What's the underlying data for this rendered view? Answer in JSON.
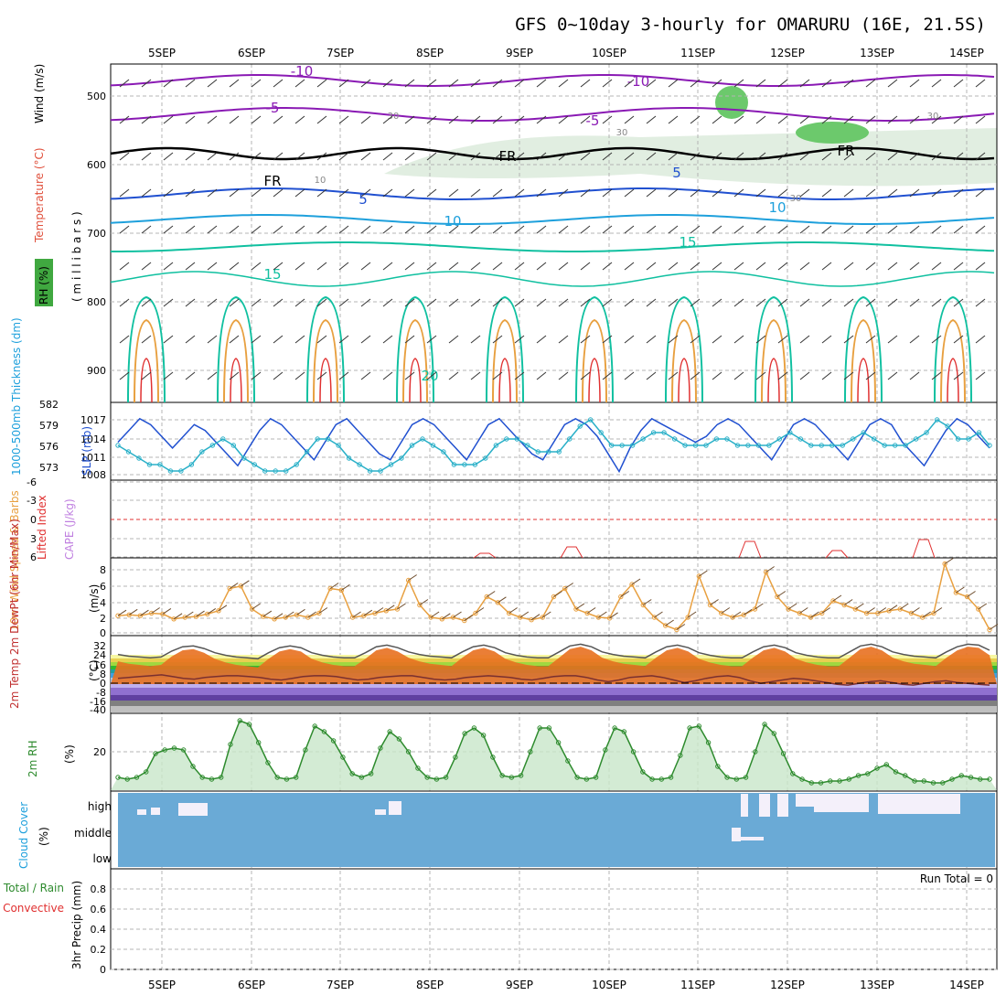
{
  "title": "GFS 0~10day 3-hourly for OMARURU (16E, 21.5S)",
  "dates": [
    "5SEP",
    "6SEP",
    "7SEP",
    "8SEP",
    "9SEP",
    "10SEP",
    "11SEP",
    "12SEP",
    "13SEP",
    "14SEP"
  ],
  "labels": {
    "wind_ms": "Wind (m/s)",
    "temperature": "Temperature (°C)",
    "rh": "RH (%)",
    "millibars": "( m i l l i b a r s )",
    "thickness": "1000-500mb Thickness (dm)",
    "slp": "SLP (mb)",
    "lifted_index": "Lifted Index",
    "cape": "CAPE (J/kg)",
    "wind10m": "10m Wind Speed & Barbs",
    "ms": "(m/s)",
    "temp2m": "2m Temp 2m DewPt (6hr Min/Max)",
    "degc": "(°C)",
    "rh2m": "2m RH",
    "pct": "(%)",
    "cloud": "Cloud Cover",
    "cloud_pct": "(%)",
    "precip_left": "Total / Rain",
    "precip_conv": "Convective",
    "precip": "3hr Precip (mm)",
    "run_total": "Run Total = 0"
  },
  "colors": {
    "purple": "#8a1ab4",
    "blue_dark": "#2050d0",
    "cyan": "#1ea0dc",
    "teal": "#10c0a0",
    "orange": "#e8a040",
    "red": "#e03030",
    "cloud_blue": "#6aaad6",
    "rh_green": "#4caf50"
  },
  "chart_data": [
    {
      "type": "line",
      "panel": "upper-air",
      "y_ticks": [
        "500",
        "600",
        "700",
        "800",
        "900"
      ],
      "contour_labels": [
        "-10",
        "-10",
        "-5",
        "-5",
        "FR",
        "FR",
        "FR",
        "5",
        "5",
        "10",
        "10",
        "15",
        "15",
        "20",
        "30",
        "30",
        "30",
        "30",
        "10"
      ],
      "ylim": [
        950,
        450
      ]
    },
    {
      "type": "line",
      "panel": "thickness-slp",
      "thickness_ticks": [
        "582",
        "579",
        "576",
        "573"
      ],
      "slp_ticks": [
        "1017",
        "1014",
        "1011",
        "1008"
      ],
      "series": [
        {
          "name": "SLP",
          "values": [
            1013,
            1015,
            1017,
            1016,
            1014,
            1012,
            1014,
            1016,
            1015,
            1013,
            1011,
            1009,
            1012,
            1015,
            1017,
            1016,
            1014,
            1012,
            1010,
            1013,
            1016,
            1017,
            1015,
            1013,
            1011,
            1010,
            1013,
            1016,
            1017,
            1016,
            1014,
            1012,
            1010,
            1013,
            1016,
            1017,
            1015,
            1013,
            1011,
            1010,
            1013,
            1016,
            1017,
            1016,
            1014,
            1011,
            1008,
            1012,
            1015,
            1017,
            1016,
            1015,
            1014,
            1013,
            1014,
            1016,
            1017,
            1016,
            1014,
            1012,
            1010,
            1013,
            1016,
            1017,
            1016,
            1014,
            1012,
            1010,
            1013,
            1016,
            1017,
            1016,
            1013,
            1011,
            1009,
            1012,
            1015,
            1017,
            1016,
            1014,
            1012
          ]
        },
        {
          "name": "Thickness",
          "values": [
            577,
            576,
            575,
            574,
            574,
            573,
            573,
            574,
            576,
            577,
            578,
            577,
            575,
            574,
            573,
            573,
            573,
            574,
            576,
            578,
            578,
            577,
            575,
            574,
            573,
            573,
            574,
            575,
            577,
            578,
            577,
            576,
            574,
            574,
            574,
            575,
            577,
            578,
            578,
            577,
            576,
            576,
            576,
            578,
            580,
            581,
            579,
            577,
            577,
            577,
            578,
            579,
            579,
            578,
            577,
            577,
            577,
            578,
            578,
            577,
            577,
            577,
            577,
            578,
            579,
            578,
            577,
            577,
            577,
            577,
            578,
            579,
            578,
            577,
            577,
            577,
            578,
            579,
            581,
            580,
            578,
            578,
            579,
            577
          ]
        }
      ]
    },
    {
      "type": "line",
      "panel": "lifted-cape",
      "y_ticks": [
        "-6",
        "-3",
        "0",
        "3",
        "6"
      ],
      "ylim": [
        6,
        -6
      ]
    },
    {
      "type": "line",
      "panel": "wind10m",
      "y_ticks": [
        "8",
        "6",
        "4",
        "2",
        "0"
      ],
      "ylim": [
        0,
        9
      ],
      "values": [
        2.2,
        2.3,
        2.2,
        2.5,
        2.4,
        1.8,
        2.0,
        2.1,
        2.4,
        2.8,
        5.5,
        5.8,
        3.0,
        2.1,
        1.8,
        2.0,
        2.3,
        2.0,
        2.5,
        5.5,
        5.3,
        2.0,
        2.2,
        2.5,
        2.8,
        3.0,
        6.5,
        3.5,
        2.0,
        1.8,
        2.0,
        1.6,
        2.5,
        4.5,
        3.8,
        2.5,
        2.0,
        1.7,
        2.0,
        4.5,
        5.5,
        3.0,
        2.5,
        2.0,
        1.9,
        4.5,
        6.0,
        3.5,
        2.0,
        1.0,
        0.5,
        2.0,
        7.0,
        3.5,
        2.5,
        2.0,
        2.3,
        3.0,
        7.5,
        4.5,
        3.0,
        2.5,
        2.0,
        2.5,
        4.0,
        3.5,
        3.0,
        2.5,
        2.5,
        2.8,
        3.0,
        2.5,
        2.0,
        2.5,
        8.5,
        5.0,
        4.5,
        3.0,
        0.5
      ]
    },
    {
      "type": "area",
      "panel": "temp2m",
      "y_ticks": [
        "32",
        "24",
        "16",
        "8",
        "0",
        "-8",
        "-16",
        "-40"
      ],
      "series": [
        {
          "name": "2m Temp",
          "values": [
            18,
            16,
            15,
            14,
            15,
            22,
            27,
            28,
            25,
            20,
            17,
            15,
            14,
            13,
            20,
            26,
            28,
            26,
            20,
            17,
            15,
            14,
            14,
            20,
            27,
            29,
            26,
            21,
            18,
            16,
            15,
            14,
            21,
            27,
            29,
            26,
            20,
            17,
            15,
            14,
            14,
            21,
            28,
            30,
            27,
            21,
            18,
            16,
            15,
            14,
            21,
            27,
            29,
            26,
            20,
            17,
            15,
            14,
            14,
            21,
            27,
            29,
            26,
            20,
            17,
            15,
            14,
            14,
            21,
            28,
            30,
            27,
            21,
            18,
            16,
            15,
            14,
            21,
            27,
            30,
            29,
            23
          ]
        },
        {
          "name": "2m DewPt",
          "values": [
            -10,
            -9,
            -8,
            -7,
            -6,
            -8,
            -10,
            -11,
            -9,
            -8,
            -7,
            -7,
            -8,
            -9,
            -11,
            -12,
            -10,
            -8,
            -7,
            -7,
            -8,
            -10,
            -12,
            -11,
            -9,
            -8,
            -7,
            -7,
            -9,
            -11,
            -12,
            -11,
            -9,
            -8,
            -7,
            -8,
            -9,
            -11,
            -12,
            -10,
            -8,
            -7,
            -7,
            -9,
            -12,
            -14,
            -12,
            -9,
            -8,
            -7,
            -9,
            -12,
            -15,
            -13,
            -10,
            -8,
            -7,
            -9,
            -13,
            -16,
            -14,
            -12,
            -10,
            -11,
            -13,
            -15,
            -17,
            -18,
            -16,
            -14,
            -13,
            -15,
            -17,
            -18,
            -16,
            -14,
            -13,
            -15,
            -16,
            -17,
            -18
          ]
        }
      ]
    },
    {
      "type": "area",
      "panel": "rh2m",
      "y_ticks": [
        "20"
      ],
      "ylim": [
        0,
        40
      ],
      "values": [
        6,
        5,
        6,
        9,
        19,
        21,
        22,
        21,
        12,
        6,
        5,
        6,
        24,
        37,
        35,
        25,
        14,
        6,
        5,
        6,
        21,
        34,
        31,
        26,
        17,
        8,
        6,
        8,
        22,
        31,
        27,
        20,
        11,
        6,
        5,
        6,
        17,
        30,
        33,
        29,
        17,
        7,
        6,
        7,
        20,
        33,
        33,
        25,
        15,
        6,
        5,
        6,
        21,
        33,
        31,
        20,
        9,
        5,
        5,
        6,
        18,
        33,
        34,
        25,
        12,
        6,
        5,
        6,
        20,
        35,
        30,
        19,
        8,
        5,
        3,
        3,
        4,
        4,
        5,
        7,
        8,
        11,
        13,
        9,
        7,
        4,
        4,
        3,
        3,
        5,
        7,
        6,
        5,
        5
      ]
    },
    {
      "type": "bar",
      "panel": "cloud",
      "y_ticks": [
        "high",
        "middle",
        "low"
      ]
    },
    {
      "type": "bar",
      "panel": "precip",
      "y_ticks": [
        "0.8",
        "0.6",
        "0.4",
        "0.2",
        "0"
      ],
      "ylim": [
        0,
        0.95
      ]
    }
  ]
}
